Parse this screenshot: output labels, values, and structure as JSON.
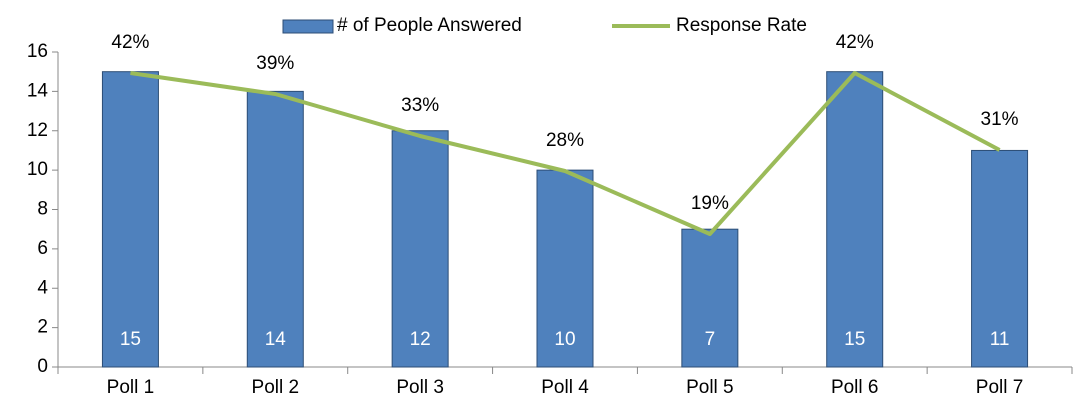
{
  "chart_data": {
    "type": "bar",
    "categories": [
      "Poll 1",
      "Poll 2",
      "Poll 3",
      "Poll 4",
      "Poll 5",
      "Poll 6",
      "Poll 7"
    ],
    "series": [
      {
        "name": "# of People Answered",
        "type": "bar",
        "color": "#4f81bd",
        "values": [
          15,
          14,
          12,
          10,
          7,
          15,
          11
        ]
      },
      {
        "name": "Response Rate",
        "type": "line",
        "axis": "y2",
        "color": "#9bbb59",
        "values": [
          42,
          39,
          33,
          28,
          19,
          42,
          31
        ],
        "value_labels": [
          "42%",
          "39%",
          "33%",
          "28%",
          "19%",
          "42%",
          "31%"
        ]
      }
    ],
    "ylim": [
      0,
      16
    ],
    "yticks": [
      0,
      2,
      4,
      6,
      8,
      10,
      12,
      14,
      16
    ],
    "y2lim": [
      0,
      45
    ],
    "legend": "top",
    "grid": false
  }
}
